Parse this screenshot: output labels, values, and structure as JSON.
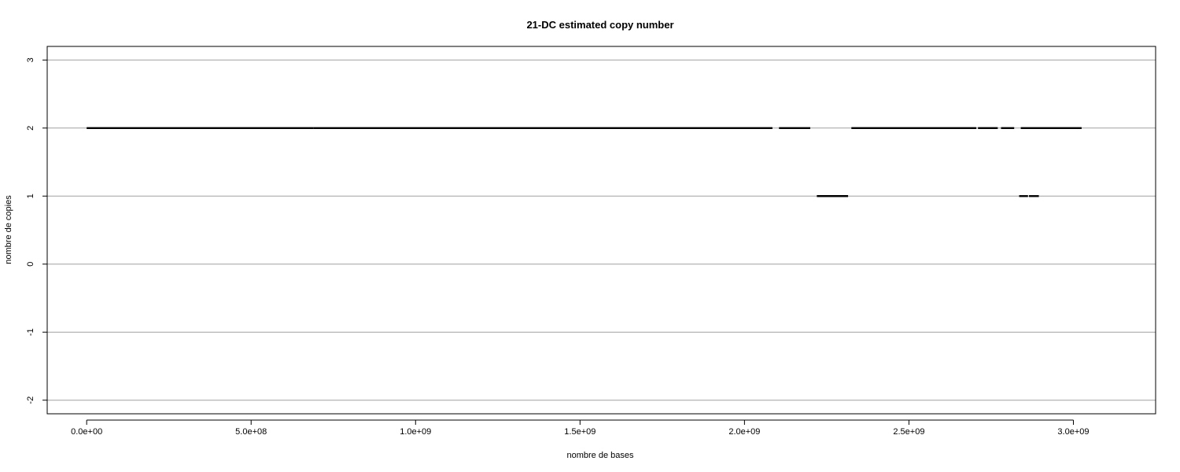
{
  "chart_data": {
    "type": "line",
    "title": "21-DC estimated copy number",
    "xlabel": "nombre de bases",
    "ylabel": "nombre de copies",
    "xlim": [
      -120000000,
      3250000000
    ],
    "ylim": [
      -2.2,
      3.2
    ],
    "x_ticks": [
      0,
      500000000,
      1000000000,
      1500000000,
      2000000000,
      2500000000,
      3000000000
    ],
    "x_tick_labels": [
      "0.0e+00",
      "5.0e+08",
      "1.0e+09",
      "1.5e+09",
      "2.0e+09",
      "2.5e+09",
      "3.0e+09"
    ],
    "y_ticks": [
      -2,
      -1,
      0,
      1,
      2,
      3
    ],
    "y_tick_labels": [
      "-2",
      "-1",
      "0",
      "1",
      "2",
      "3"
    ],
    "grid": "horizontal at y ticks",
    "series": [
      {
        "segments": [
          {
            "x0": 0,
            "x1": 690000000,
            "y": 2
          },
          {
            "x0": 690000000,
            "x1": 2085000000,
            "y": 2
          },
          {
            "x0": 2105000000,
            "x1": 2200000000,
            "y": 2
          },
          {
            "x0": 2220000000,
            "x1": 2315000000,
            "y": 1
          },
          {
            "x0": 2325000000,
            "x1": 2705000000,
            "y": 2
          },
          {
            "x0": 2710000000,
            "x1": 2770000000,
            "y": 2
          },
          {
            "x0": 2780000000,
            "x1": 2820000000,
            "y": 2
          },
          {
            "x0": 2835000000,
            "x1": 2862000000,
            "y": 1
          },
          {
            "x0": 2865000000,
            "x1": 2895000000,
            "y": 1
          },
          {
            "x0": 2840000000,
            "x1": 3025000000,
            "y": 2
          }
        ]
      }
    ]
  }
}
